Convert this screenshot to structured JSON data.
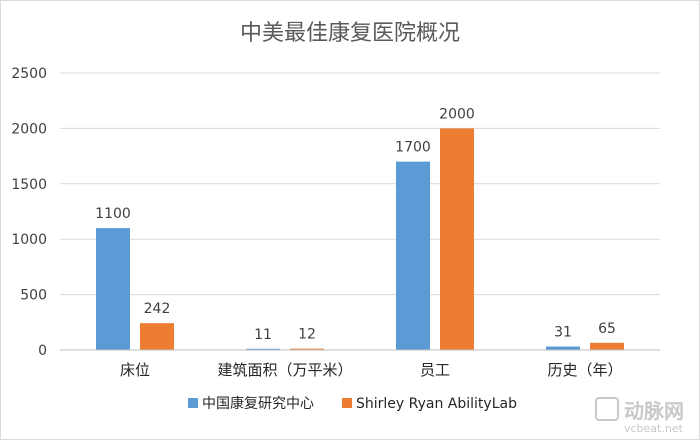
{
  "chart_data": {
    "type": "bar",
    "title": "中美最佳康复医院概况",
    "categories": [
      "床位",
      "建筑面积（万平米）",
      "员工",
      "历史（年）"
    ],
    "series": [
      {
        "name": "中国康复研究中心",
        "color": "#5b9bd5",
        "values": [
          1100,
          11,
          1700,
          31
        ]
      },
      {
        "name": "Shirley Ryan AbilityLab",
        "color": "#ed7d31",
        "values": [
          242,
          12,
          2000,
          65
        ]
      }
    ],
    "ylim": [
      0,
      2500
    ],
    "yticks": [
      0,
      500,
      1000,
      1500,
      2000,
      2500
    ],
    "grid": true,
    "legend": "bottom"
  },
  "watermark": {
    "text": "动脉网",
    "sub": "vcbeat.net"
  }
}
